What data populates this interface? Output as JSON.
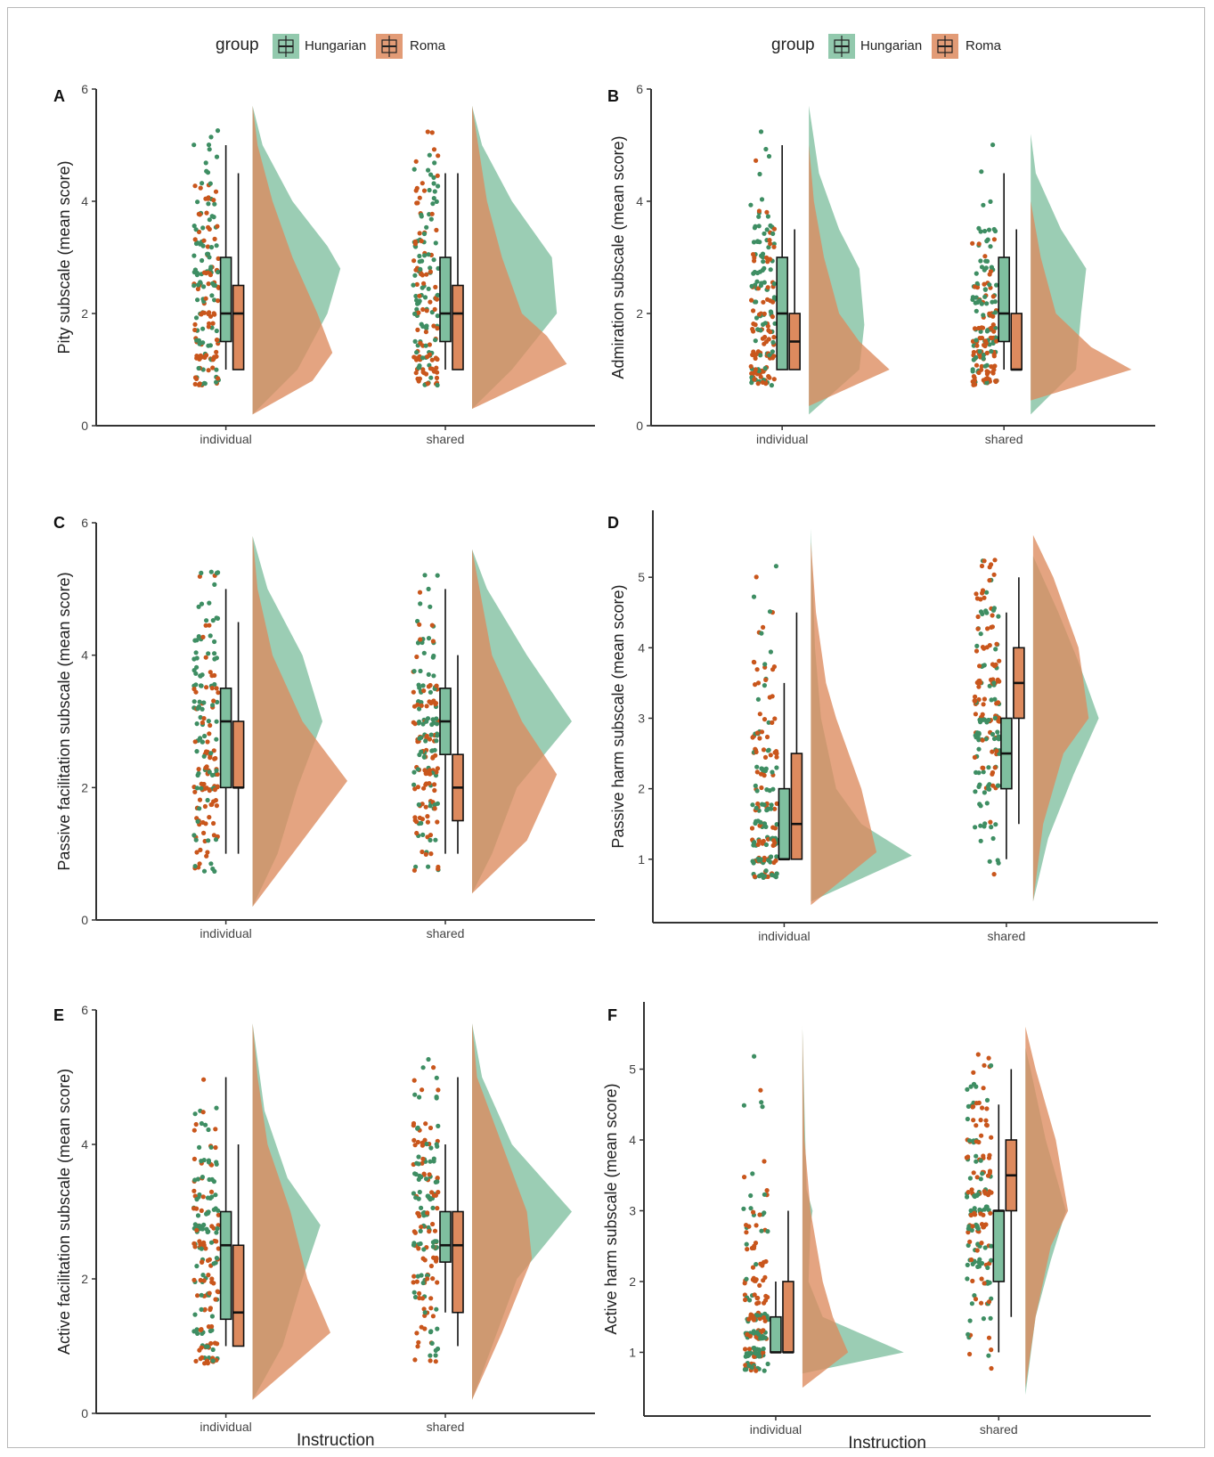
{
  "legend": {
    "title": "group",
    "items": [
      "Hungarian",
      "Roma"
    ]
  },
  "colors": {
    "hungarian": "#7fbf9f",
    "roma": "#dd8a5e",
    "overlap": "#9c7e52",
    "dot_hungarian": "#3e8e63",
    "dot_roma": "#c9561c",
    "axis": "#333333"
  },
  "chart_data": [
    {
      "panel": "A",
      "type": "raincloud",
      "ylabel": "Pity subscale (mean score)",
      "xlabel": "",
      "categories": [
        "individual",
        "shared"
      ],
      "ylim": [
        0,
        6
      ],
      "yticks": [
        0,
        2,
        4,
        6
      ],
      "series": [
        {
          "name": "Hungarian",
          "box": [
            [
              1,
              1.5,
              2,
              3,
              5
            ],
            [
              1,
              1.5,
              2,
              3,
              4.5
            ]
          ],
          "density": [
            [
              [
                0.2,
                0
              ],
              [
                1,
                0.45
              ],
              [
                2,
                0.75
              ],
              [
                2.8,
                0.88
              ],
              [
                3.2,
                0.75
              ],
              [
                4,
                0.4
              ],
              [
                5,
                0.1
              ],
              [
                5.7,
                0
              ]
            ],
            [
              [
                0.3,
                0
              ],
              [
                1,
                0.4
              ],
              [
                2,
                0.85
              ],
              [
                3,
                0.8
              ],
              [
                4,
                0.4
              ],
              [
                5,
                0.1
              ],
              [
                5.7,
                0
              ]
            ]
          ]
        },
        {
          "name": "Roma",
          "box": [
            [
              1,
              1,
              2,
              2.5,
              4.5
            ],
            [
              1,
              1,
              2,
              2.5,
              4.5
            ]
          ],
          "density": [
            [
              [
                0.2,
                0
              ],
              [
                0.8,
                0.6
              ],
              [
                1.3,
                0.8
              ],
              [
                2,
                0.65
              ],
              [
                3,
                0.4
              ],
              [
                4,
                0.2
              ],
              [
                5,
                0.05
              ],
              [
                5.7,
                0
              ]
            ],
            [
              [
                0.3,
                0
              ],
              [
                1.1,
                0.95
              ],
              [
                1.6,
                0.75
              ],
              [
                2,
                0.5
              ],
              [
                3,
                0.3
              ],
              [
                4,
                0.15
              ],
              [
                5.7,
                0
              ]
            ]
          ]
        }
      ]
    },
    {
      "panel": "B",
      "type": "raincloud",
      "ylabel": "Admiration subscale (mean score)",
      "xlabel": "",
      "categories": [
        "individual",
        "shared"
      ],
      "ylim": [
        0,
        6
      ],
      "yticks": [
        0,
        2,
        4,
        6
      ],
      "series": [
        {
          "name": "Hungarian",
          "box": [
            [
              1,
              1,
              2,
              3,
              5
            ],
            [
              1,
              1.5,
              2,
              3,
              4.5
            ]
          ],
          "density": [
            [
              [
                0.2,
                0
              ],
              [
                1,
                0.5
              ],
              [
                1.8,
                0.55
              ],
              [
                2.8,
                0.5
              ],
              [
                3.5,
                0.3
              ],
              [
                4.5,
                0.1
              ],
              [
                5.7,
                0
              ]
            ],
            [
              [
                0.2,
                0
              ],
              [
                1,
                0.45
              ],
              [
                2,
                0.5
              ],
              [
                2.8,
                0.55
              ],
              [
                3.5,
                0.3
              ],
              [
                4.5,
                0.05
              ],
              [
                5.2,
                0
              ]
            ]
          ]
        },
        {
          "name": "Roma",
          "box": [
            [
              1,
              1,
              1.5,
              2,
              3.5
            ],
            [
              1,
              1,
              1,
              2,
              3.5
            ]
          ],
          "density": [
            [
              [
                0.35,
                0
              ],
              [
                1,
                0.8
              ],
              [
                1.5,
                0.5
              ],
              [
                2,
                0.3
              ],
              [
                3,
                0.15
              ],
              [
                4,
                0.05
              ],
              [
                5,
                0
              ]
            ],
            [
              [
                0.45,
                0
              ],
              [
                1,
                1
              ],
              [
                1.4,
                0.6
              ],
              [
                2,
                0.25
              ],
              [
                3,
                0.1
              ],
              [
                4,
                0
              ]
            ]
          ]
        }
      ]
    },
    {
      "panel": "C",
      "type": "raincloud",
      "ylabel": "Passive facilitation subscale (mean score)",
      "xlabel": "",
      "categories": [
        "individual",
        "shared"
      ],
      "ylim": [
        0,
        6
      ],
      "yticks": [
        0,
        2,
        4,
        6
      ],
      "series": [
        {
          "name": "Hungarian",
          "box": [
            [
              1,
              2,
              3,
              3.5,
              5
            ],
            [
              1,
              2.5,
              3,
              3.5,
              5
            ]
          ],
          "density": [
            [
              [
                0.2,
                0
              ],
              [
                1,
                0.25
              ],
              [
                2,
                0.45
              ],
              [
                3,
                0.7
              ],
              [
                4,
                0.5
              ],
              [
                5,
                0.15
              ],
              [
                5.8,
                0
              ]
            ],
            [
              [
                0.4,
                0
              ],
              [
                1,
                0.2
              ],
              [
                2,
                0.45
              ],
              [
                3,
                1
              ],
              [
                4,
                0.55
              ],
              [
                5,
                0.15
              ],
              [
                5.6,
                0
              ]
            ]
          ]
        },
        {
          "name": "Roma",
          "box": [
            [
              1,
              2,
              2,
              3,
              4.5
            ],
            [
              1,
              1.5,
              2,
              2.5,
              4
            ]
          ],
          "density": [
            [
              [
                0.2,
                0
              ],
              [
                1,
                0.4
              ],
              [
                2.1,
                0.95
              ],
              [
                3,
                0.5
              ],
              [
                4,
                0.2
              ],
              [
                5,
                0.05
              ],
              [
                5.8,
                0
              ]
            ],
            [
              [
                0.4,
                0
              ],
              [
                1.2,
                0.55
              ],
              [
                2.2,
                0.85
              ],
              [
                3,
                0.5
              ],
              [
                4,
                0.2
              ],
              [
                5.6,
                0
              ]
            ]
          ]
        }
      ]
    },
    {
      "panel": "D",
      "type": "raincloud",
      "ylabel": "Passive harm subscale (mean score)",
      "xlabel": "",
      "categories": [
        "individual",
        "shared"
      ],
      "ylim": [
        0.1,
        5.95
      ],
      "yticks": [
        1,
        2,
        3,
        4,
        5
      ],
      "series": [
        {
          "name": "Hungarian",
          "box": [
            [
              1,
              1,
              1,
              2,
              3.5
            ],
            [
              1,
              2,
              2.5,
              3,
              4.5
            ]
          ],
          "density": [
            [
              [
                0.4,
                0
              ],
              [
                1.05,
                1
              ],
              [
                1.5,
                0.5
              ],
              [
                2,
                0.25
              ],
              [
                3,
                0.1
              ],
              [
                4,
                0.04
              ],
              [
                5.7,
                0
              ]
            ],
            [
              [
                0.4,
                0
              ],
              [
                1.3,
                0.15
              ],
              [
                2.2,
                0.4
              ],
              [
                3,
                0.65
              ],
              [
                3.8,
                0.45
              ],
              [
                4.5,
                0.25
              ],
              [
                5.3,
                0
              ]
            ]
          ]
        },
        {
          "name": "Roma",
          "box": [
            [
              1,
              1,
              1.5,
              2.5,
              4.5
            ],
            [
              1.5,
              3,
              3.5,
              4,
              5
            ]
          ],
          "density": [
            [
              [
                0.35,
                0
              ],
              [
                1.1,
                0.65
              ],
              [
                2,
                0.5
              ],
              [
                3,
                0.25
              ],
              [
                3.5,
                0.15
              ],
              [
                4.5,
                0.05
              ],
              [
                5.5,
                0
              ]
            ],
            [
              [
                0.4,
                0
              ],
              [
                1.5,
                0.1
              ],
              [
                2.5,
                0.3
              ],
              [
                3,
                0.55
              ],
              [
                4,
                0.45
              ],
              [
                5,
                0.2
              ],
              [
                5.6,
                0
              ]
            ]
          ]
        }
      ]
    },
    {
      "panel": "E",
      "type": "raincloud",
      "ylabel": "Active facilitation subscale (mean score)",
      "xlabel": "Instruction",
      "categories": [
        "individual",
        "shared"
      ],
      "ylim": [
        0,
        6
      ],
      "yticks": [
        0,
        2,
        4,
        6
      ],
      "series": [
        {
          "name": "Hungarian",
          "box": [
            [
              1,
              1.4,
              2.5,
              3,
              5
            ],
            [
              1.5,
              2.25,
              2.5,
              3,
              4
            ]
          ],
          "density": [
            [
              [
                0.2,
                0
              ],
              [
                1,
                0.3
              ],
              [
                2,
                0.5
              ],
              [
                2.8,
                0.68
              ],
              [
                3.5,
                0.35
              ],
              [
                4.5,
                0.12
              ],
              [
                5.8,
                0
              ]
            ],
            [
              [
                0.2,
                0
              ],
              [
                1,
                0.2
              ],
              [
                2,
                0.45
              ],
              [
                3,
                1
              ],
              [
                4,
                0.4
              ],
              [
                5,
                0.1
              ],
              [
                5.8,
                0
              ]
            ]
          ]
        },
        {
          "name": "Roma",
          "box": [
            [
              1,
              1,
              1.5,
              2.5,
              4
            ],
            [
              1,
              1.5,
              2.5,
              3,
              5
            ]
          ],
          "density": [
            [
              [
                0.2,
                0
              ],
              [
                1.2,
                0.78
              ],
              [
                2,
                0.55
              ],
              [
                3,
                0.38
              ],
              [
                4,
                0.15
              ],
              [
                5,
                0.05
              ],
              [
                5.8,
                0
              ]
            ],
            [
              [
                0.2,
                0
              ],
              [
                1.2,
                0.3
              ],
              [
                2.3,
                0.6
              ],
              [
                3,
                0.55
              ],
              [
                4,
                0.3
              ],
              [
                5,
                0.05
              ],
              [
                5.8,
                0
              ]
            ]
          ]
        }
      ]
    },
    {
      "panel": "F",
      "type": "raincloud",
      "ylabel": "Active harm subscale (mean score)",
      "xlabel": "Instruction",
      "categories": [
        "individual",
        "shared"
      ],
      "ylim": [
        0.1,
        5.95
      ],
      "yticks": [
        1,
        2,
        3,
        4,
        5
      ],
      "series": [
        {
          "name": "Hungarian",
          "box": [
            [
              1,
              1,
              1,
              1.5,
              2
            ],
            [
              1,
              2,
              3,
              3,
              4.5
            ]
          ],
          "density": [
            [
              [
                0.7,
                0
              ],
              [
                1,
                1
              ],
              [
                1.5,
                0.2
              ],
              [
                2,
                0.06
              ],
              [
                2.8,
                0.08
              ],
              [
                3,
                0.1
              ],
              [
                3.3,
                0.04
              ],
              [
                5.6,
                0
              ]
            ],
            [
              [
                0.4,
                0
              ],
              [
                1.5,
                0.1
              ],
              [
                2.3,
                0.25
              ],
              [
                3,
                0.4
              ],
              [
                4,
                0.2
              ],
              [
                5,
                0.05
              ],
              [
                5.3,
                0
              ]
            ]
          ]
        },
        {
          "name": "Roma",
          "box": [
            [
              1,
              1,
              1,
              2,
              3
            ],
            [
              1.5,
              3,
              3.5,
              4,
              5
            ]
          ],
          "density": [
            [
              [
                0.5,
                0
              ],
              [
                1,
                0.45
              ],
              [
                1.5,
                0.3
              ],
              [
                2,
                0.2
              ],
              [
                3,
                0.08
              ],
              [
                4,
                0.02
              ],
              [
                5.6,
                0
              ]
            ],
            [
              [
                0.5,
                0
              ],
              [
                1.5,
                0.1
              ],
              [
                2.5,
                0.25
              ],
              [
                3,
                0.42
              ],
              [
                4,
                0.3
              ],
              [
                5,
                0.1
              ],
              [
                5.6,
                0
              ]
            ]
          ]
        }
      ]
    }
  ]
}
